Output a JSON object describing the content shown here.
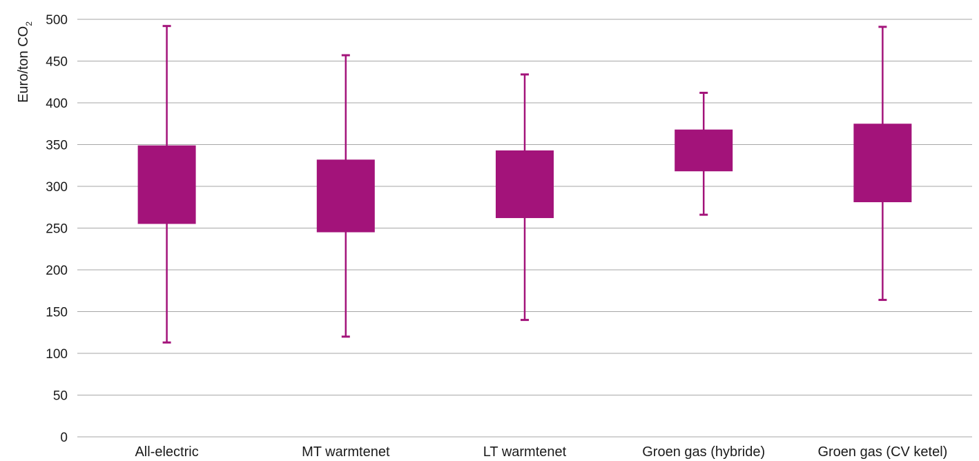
{
  "chart_data": {
    "type": "box",
    "ylabel": "Euro/ton CO",
    "ylabel_subscript": "2",
    "ylim": [
      0,
      500
    ],
    "yticks": [
      0,
      50,
      100,
      150,
      200,
      250,
      300,
      350,
      400,
      450,
      500
    ],
    "grid": true,
    "color": "#a3137a",
    "categories": [
      "All-electric",
      "MT warmtenet",
      "LT warmtenet",
      "Groen gas (hybride)",
      "Groen gas (CV ketel)"
    ],
    "boxes": [
      {
        "min": 113,
        "q1": 255,
        "q3": 349,
        "max": 492
      },
      {
        "min": 120,
        "q1": 245,
        "q3": 332,
        "max": 457
      },
      {
        "min": 140,
        "q1": 262,
        "q3": 343,
        "max": 434
      },
      {
        "min": 266,
        "q1": 318,
        "q3": 368,
        "max": 412
      },
      {
        "min": 164,
        "q1": 281,
        "q3": 375,
        "max": 491
      }
    ]
  }
}
